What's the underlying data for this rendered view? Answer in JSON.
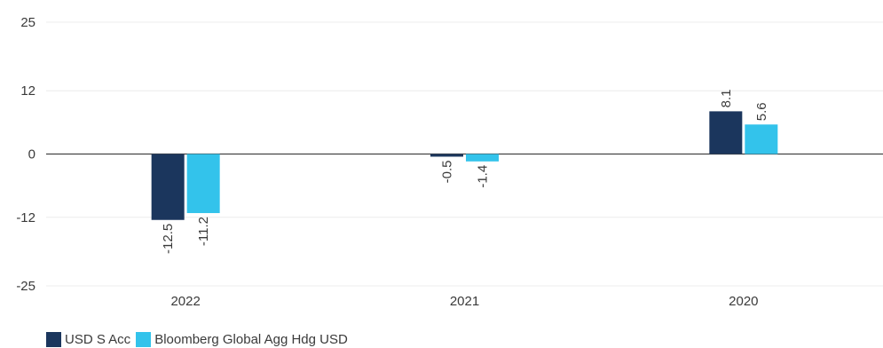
{
  "chart_data": {
    "type": "bar",
    "categories": [
      "2022",
      "2021",
      "2020"
    ],
    "series": [
      {
        "name": "USD S Acc",
        "values": [
          -12.5,
          -0.5,
          8.1
        ],
        "color": "#1b365d"
      },
      {
        "name": "Bloomberg Global Agg Hdg USD",
        "values": [
          -11.2,
          -1.4,
          5.6
        ],
        "color": "#33c3eb"
      }
    ],
    "yticks": [
      "25",
      "12",
      "0",
      "-12",
      "-25"
    ],
    "ytick_values": [
      25,
      12,
      0,
      -12,
      -25
    ],
    "ylim": [
      -25,
      25
    ],
    "grid": true,
    "legend_position": "bottom-left"
  }
}
